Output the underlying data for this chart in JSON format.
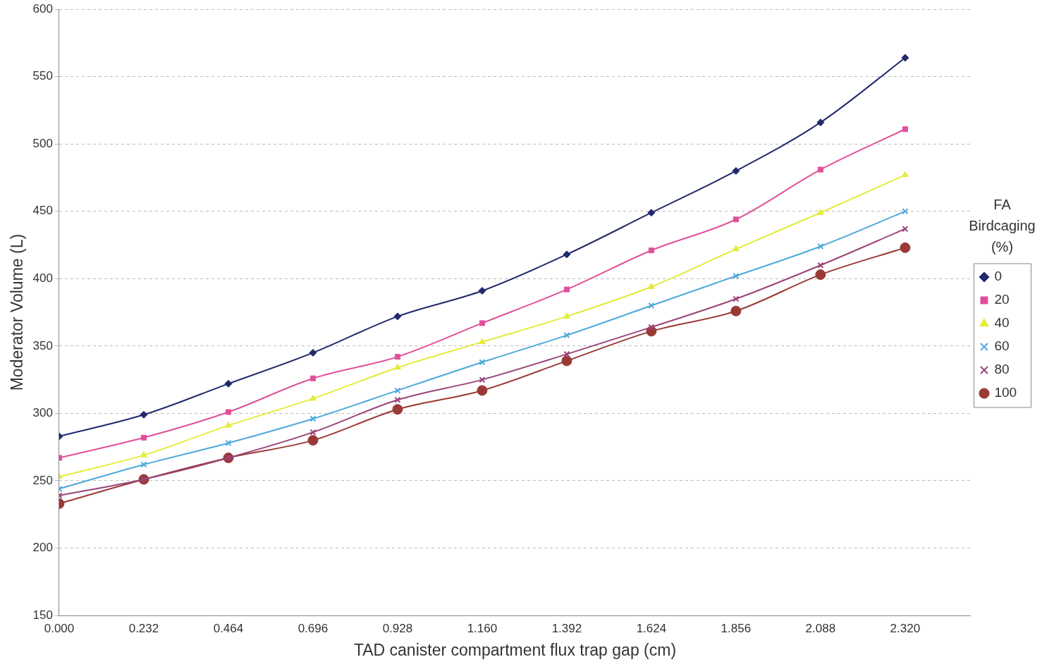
{
  "chart_data": {
    "type": "line",
    "xlabel": "TAD canister compartment flux trap gap (cm)",
    "ylabel": "Moderator Volume (L)",
    "legend_title": "FA Birdcaging (%)",
    "x": [
      0,
      0.232,
      0.464,
      0.696,
      0.928,
      1.16,
      1.392,
      1.624,
      1.856,
      2.088,
      2.32
    ],
    "xlim": [
      0,
      2.5
    ],
    "xticks": [
      {
        "value": 0,
        "label": "0.000"
      },
      {
        "value": 0.232,
        "label": "0.232"
      },
      {
        "value": 0.464,
        "label": "0.464"
      },
      {
        "value": 0.696,
        "label": "0.696"
      },
      {
        "value": 0.928,
        "label": "0.928"
      },
      {
        "value": 1.16,
        "label": "1.160"
      },
      {
        "value": 1.392,
        "label": "1.392"
      },
      {
        "value": 1.624,
        "label": "1.624"
      },
      {
        "value": 1.856,
        "label": "1.856"
      },
      {
        "value": 2.088,
        "label": "2.088"
      },
      {
        "value": 2.32,
        "label": "2.320"
      }
    ],
    "ylim": [
      150,
      600
    ],
    "yticks": [
      150,
      200,
      250,
      300,
      350,
      400,
      450,
      500,
      550,
      600
    ],
    "grid": "y",
    "legend": "right",
    "line_style": "solid",
    "series": [
      {
        "name": "0",
        "color": "#202a6b",
        "marker": "diamond",
        "values": [
          283,
          299,
          322,
          345,
          372,
          391,
          418,
          449,
          480,
          516,
          564
        ]
      },
      {
        "name": "20",
        "color": "#e0509a",
        "marker": "square",
        "values": [
          267,
          282,
          301,
          326,
          342,
          367,
          392,
          421,
          444,
          481,
          511
        ]
      },
      {
        "name": "40",
        "color": "#e4ec3a",
        "marker": "triangle",
        "values": [
          253,
          269,
          291,
          311,
          334,
          353,
          372,
          394,
          422,
          449,
          477
        ]
      },
      {
        "name": "60",
        "color": "#4fa8dc",
        "marker": "cross",
        "values": [
          244,
          262,
          278,
          296,
          317,
          338,
          358,
          380,
          402,
          424,
          450
        ]
      },
      {
        "name": "80",
        "color": "#9a4478",
        "marker": "cross",
        "values": [
          239,
          251,
          267,
          286,
          310,
          325,
          344,
          364,
          385,
          410,
          437
        ]
      },
      {
        "name": "100",
        "color": "#9a3a36",
        "marker": "circle",
        "values": [
          233,
          251,
          267,
          280,
          303,
          317,
          339,
          361,
          376,
          403,
          423
        ]
      }
    ]
  }
}
